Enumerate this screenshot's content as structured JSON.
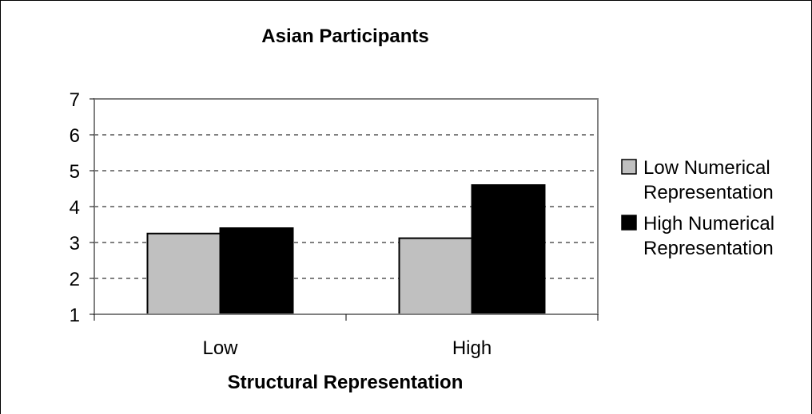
{
  "chart_data": {
    "type": "bar",
    "title": "Asian Participants",
    "xlabel": "Structural Representation",
    "ylabel": "",
    "categories": [
      "Low",
      "High"
    ],
    "series": [
      {
        "name": "Low Numerical Representation",
        "legend_lines": [
          "Low Numerical",
          "Representation"
        ],
        "values": [
          3.25,
          3.12
        ],
        "color": "#c0c0c0"
      },
      {
        "name": "High Numerical Representation",
        "legend_lines": [
          "High Numerical",
          "Representation"
        ],
        "values": [
          3.4,
          4.6
        ],
        "color": "#000000"
      }
    ],
    "ylim": [
      1,
      7
    ],
    "yticks": [
      "1",
      "2",
      "3",
      "4",
      "5",
      "6",
      "7"
    ],
    "grid": true,
    "legend_position": "right"
  }
}
